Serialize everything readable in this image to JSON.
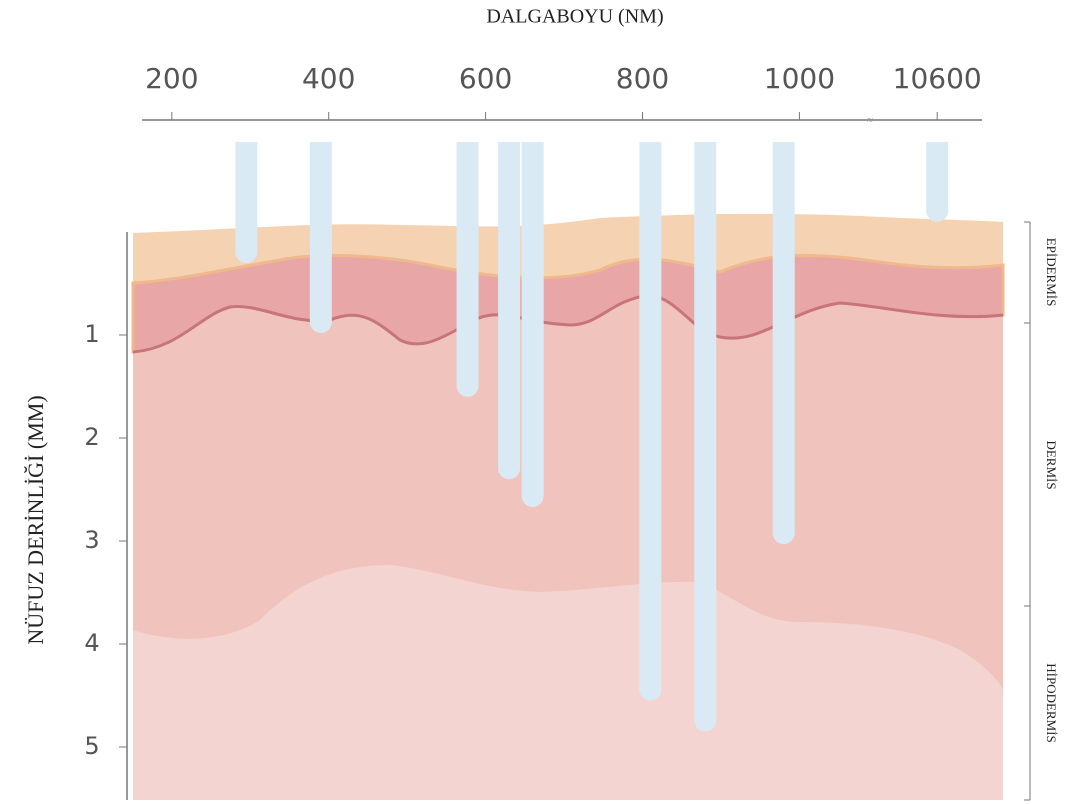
{
  "chart_data": {
    "type": "bar",
    "title": "DALGABOYU (NM)",
    "y_label": "NÜFUZ DERİNLİĞİ (MM)",
    "x": [
      295,
      390,
      577,
      630,
      660,
      810,
      880,
      980,
      10600
    ],
    "values": [
      0.3,
      0.98,
      1.6,
      2.4,
      2.67,
      4.55,
      4.85,
      3.03,
      -0.1
    ],
    "color": "#daeaf4",
    "xlim": [
      162,
      10700
    ],
    "xbreak": [
      1090,
      10450
    ],
    "xticks": [
      200,
      400,
      600,
      800,
      1000,
      10600
    ],
    "ylim": [
      0,
      5.5
    ],
    "yticks": [
      1,
      2,
      3,
      4,
      5
    ],
    "layers": [
      "EPİDERMİS",
      "DERMİS",
      "HİPODERMİS"
    ]
  }
}
